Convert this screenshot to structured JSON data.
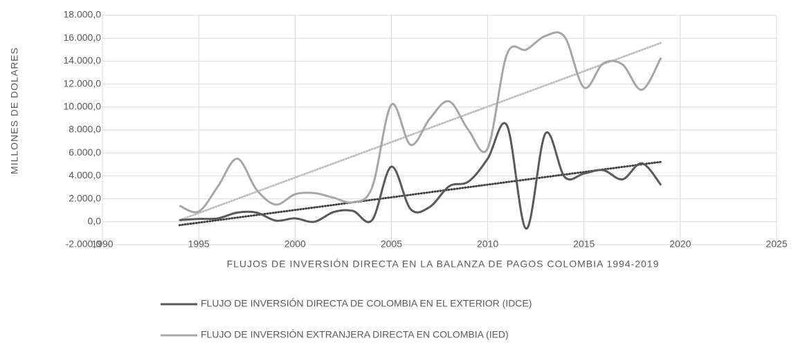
{
  "chart_data": {
    "type": "line",
    "xlabel": "FLUJOS DE INVERSIÓN DIRECTA EN LA BALANZA DE PAGOS COLOMBIA 1994-2019",
    "ylabel": "MILLONES DE DOLARES",
    "x": [
      1994,
      1995,
      1996,
      1997,
      1998,
      1999,
      2000,
      2001,
      2002,
      2003,
      2004,
      2005,
      2006,
      2007,
      2008,
      2009,
      2010,
      2011,
      2012,
      2013,
      2014,
      2015,
      2016,
      2017,
      2018,
      2019
    ],
    "series": [
      {
        "name": "FLUJO DE INVERSIÓN DIRECTA DE COLOMBIA EN EL EXTERIOR (IDCE)",
        "color": "#595959",
        "trendline": true,
        "trend_color": "#404040",
        "values": [
          150,
          250,
          300,
          800,
          800,
          100,
          300,
          0,
          850,
          950,
          150,
          4800,
          1100,
          1300,
          3100,
          3500,
          5500,
          8400,
          -600,
          7700,
          3900,
          4200,
          4500,
          3700,
          5100,
          3200
        ]
      },
      {
        "name": "FLUJO DE INVERSIÓN EXTRANJERA DIRECTA EN COLOMBIA  (IED)",
        "color": "#a6a6a6",
        "trendline": true,
        "trend_color": "#bfbfbf",
        "values": [
          1400,
          900,
          3100,
          5500,
          2800,
          1500,
          2400,
          2500,
          2100,
          1700,
          3000,
          10200,
          6700,
          9000,
          10500,
          8000,
          6400,
          14600,
          15000,
          16200,
          16100,
          11700,
          13800,
          13700,
          11500,
          14300
        ]
      }
    ],
    "xlim": [
      1990,
      2025
    ],
    "xticks": [
      1990,
      1995,
      2000,
      2005,
      2010,
      2015,
      2020,
      2025
    ],
    "ylim": [
      -2000,
      18000
    ],
    "yticks": [
      {
        "value": -2000,
        "label": "-2.000,0"
      },
      {
        "value": 0,
        "label": "0,0"
      },
      {
        "value": 2000,
        "label": "2.000,0"
      },
      {
        "value": 4000,
        "label": "4.000,0"
      },
      {
        "value": 6000,
        "label": "6.000,0"
      },
      {
        "value": 8000,
        "label": "8.000,0"
      },
      {
        "value": 10000,
        "label": "10.000,0"
      },
      {
        "value": 12000,
        "label": "12.000,0"
      },
      {
        "value": 14000,
        "label": "14.000,0"
      },
      {
        "value": 16000,
        "label": "16.000,0"
      },
      {
        "value": 18000,
        "label": "18.000,0"
      }
    ],
    "grid": true
  }
}
